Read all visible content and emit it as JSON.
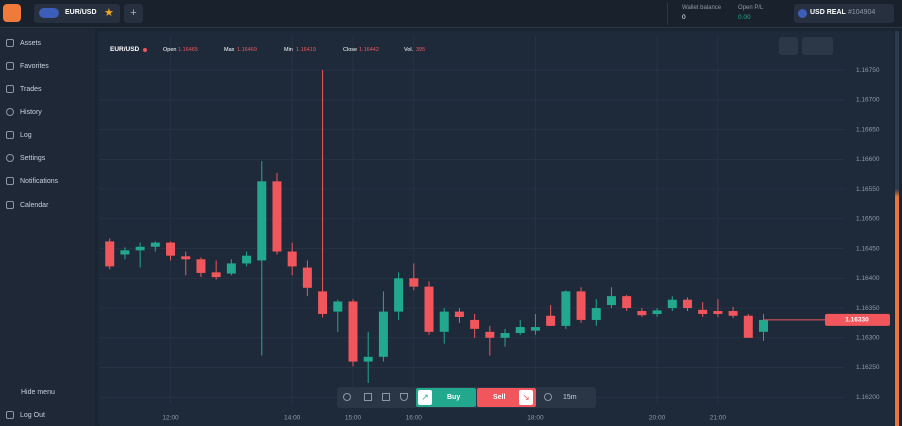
{
  "header": {
    "tab": "EUR/USD",
    "wallet_label": "Wallet balance",
    "wallet_value": "0",
    "pl_label": "Open P/L",
    "pl_value": "0.00",
    "account": "USD REAL",
    "account_id": "#104904"
  },
  "sidebar": {
    "items": [
      "Assets",
      "Favorites",
      "Trades",
      "History",
      "Log",
      "Settings",
      "Notifications",
      "Calendar"
    ],
    "hide": "Hide menu",
    "logout": "Log Out"
  },
  "info": {
    "symbol": "EUR/USD",
    "open_label": "Open",
    "open": "1.16465",
    "max_label": "Max",
    "max": "1.16469",
    "min_label": "Min",
    "min": "1.16419",
    "close_label": "Close",
    "close": "1.16442",
    "vol_label": "Vol.",
    "vol": "395"
  },
  "toolbar": {
    "buy": "Buy",
    "sell": "Sell",
    "interval": "15m"
  },
  "chart_data": {
    "type": "candlestick",
    "up_color": "#22a98d",
    "down_color": "#f0565b",
    "grid": true,
    "x": [
      11,
      11.25,
      11.5,
      11.75,
      12,
      12.25,
      12.5,
      12.75,
      13,
      13.25,
      13.5,
      13.75,
      14,
      14.25,
      14.5,
      14.75,
      15,
      15.25,
      15.5,
      15.75,
      16,
      16.25,
      16.5,
      16.75,
      17,
      17.25,
      17.5,
      17.75,
      18,
      18.25,
      18.5,
      18.75,
      19,
      19.25,
      19.5,
      19.75,
      20,
      20.25,
      20.5,
      20.75,
      21,
      21.25,
      21.5,
      21.75
    ],
    "open": [
      1.16462,
      1.1644,
      1.16447,
      1.16453,
      1.1646,
      1.16437,
      1.16432,
      1.1641,
      1.16408,
      1.16425,
      1.1643,
      1.16563,
      1.16445,
      1.16418,
      1.16378,
      1.16344,
      1.16361,
      1.1626,
      1.16268,
      1.16344,
      1.164,
      1.16386,
      1.1631,
      1.16344,
      1.1633,
      1.1631,
      1.163,
      1.16308,
      1.16312,
      1.16337,
      1.1632,
      1.16378,
      1.1633,
      1.16355,
      1.1637,
      1.16345,
      1.1634,
      1.1635,
      1.16364,
      1.16347,
      1.16345,
      1.16345,
      1.16337,
      1.1631
    ],
    "high": [
      1.16467,
      1.16452,
      1.1646,
      1.16462,
      1.16462,
      1.16445,
      1.16435,
      1.1643,
      1.16432,
      1.16445,
      1.16597,
      1.16577,
      1.1646,
      1.1643,
      1.1675,
      1.16364,
      1.16365,
      1.1631,
      1.16378,
      1.1641,
      1.16425,
      1.16395,
      1.1635,
      1.1635,
      1.1634,
      1.1632,
      1.16315,
      1.1633,
      1.1634,
      1.16355,
      1.1638,
      1.16385,
      1.16365,
      1.16385,
      1.16372,
      1.1635,
      1.1635,
      1.1637,
      1.16368,
      1.1636,
      1.16365,
      1.16352,
      1.1634,
      1.1634
    ],
    "low": [
      1.16415,
      1.16432,
      1.16418,
      1.16445,
      1.1643,
      1.16405,
      1.16402,
      1.16398,
      1.16405,
      1.1642,
      1.1627,
      1.1644,
      1.16405,
      1.1637,
      1.16334,
      1.1631,
      1.16252,
      1.16224,
      1.1626,
      1.1633,
      1.1638,
      1.16305,
      1.1629,
      1.16325,
      1.163,
      1.1627,
      1.16285,
      1.16305,
      1.16305,
      1.1632,
      1.16315,
      1.16325,
      1.1632,
      1.1635,
      1.16345,
      1.16335,
      1.16335,
      1.16345,
      1.16345,
      1.16335,
      1.16335,
      1.16333,
      1.163,
      1.16295
    ],
    "close": [
      1.1642,
      1.16447,
      1.16453,
      1.1646,
      1.16438,
      1.16432,
      1.16409,
      1.16402,
      1.16425,
      1.16438,
      1.16563,
      1.16445,
      1.1642,
      1.16384,
      1.1634,
      1.16361,
      1.1626,
      1.16268,
      1.16344,
      1.164,
      1.16386,
      1.1631,
      1.16344,
      1.16335,
      1.16315,
      1.163,
      1.16308,
      1.16318,
      1.16318,
      1.1632,
      1.16378,
      1.1633,
      1.1635,
      1.1637,
      1.1635,
      1.16338,
      1.16346,
      1.16364,
      1.1635,
      1.1634,
      1.1634,
      1.16337,
      1.163,
      1.1633
    ],
    "xlim": [
      10.84,
      23.09
    ],
    "xticks": [
      {
        "value": 12,
        "label": "12:00"
      },
      {
        "value": 14,
        "label": "14:00"
      },
      {
        "value": 15,
        "label": "15:00"
      },
      {
        "value": 16,
        "label": "16:00"
      },
      {
        "value": 18,
        "label": "18:00"
      },
      {
        "value": 20,
        "label": "20:00"
      },
      {
        "value": 21,
        "label": "21:00"
      }
    ],
    "ylim": [
      1.16187,
      1.16809
    ],
    "yticks": [
      {
        "value": 1.1675,
        "label": "1.16750"
      },
      {
        "value": 1.167,
        "label": "1.16700"
      },
      {
        "value": 1.1665,
        "label": "1.16650"
      },
      {
        "value": 1.166,
        "label": "1.16600"
      },
      {
        "value": 1.1655,
        "label": "1.16550"
      },
      {
        "value": 1.165,
        "label": "1.16500"
      },
      {
        "value": 1.1645,
        "label": "1.16450"
      },
      {
        "value": 1.164,
        "label": "1.16400"
      },
      {
        "value": 1.1635,
        "label": "1.16350"
      },
      {
        "value": 1.163,
        "label": "1.16300"
      },
      {
        "value": 1.1625,
        "label": "1.16250"
      },
      {
        "value": 1.162,
        "label": "1.16200"
      }
    ],
    "current_price": {
      "value": 1.1633,
      "label": "1.16330"
    }
  }
}
